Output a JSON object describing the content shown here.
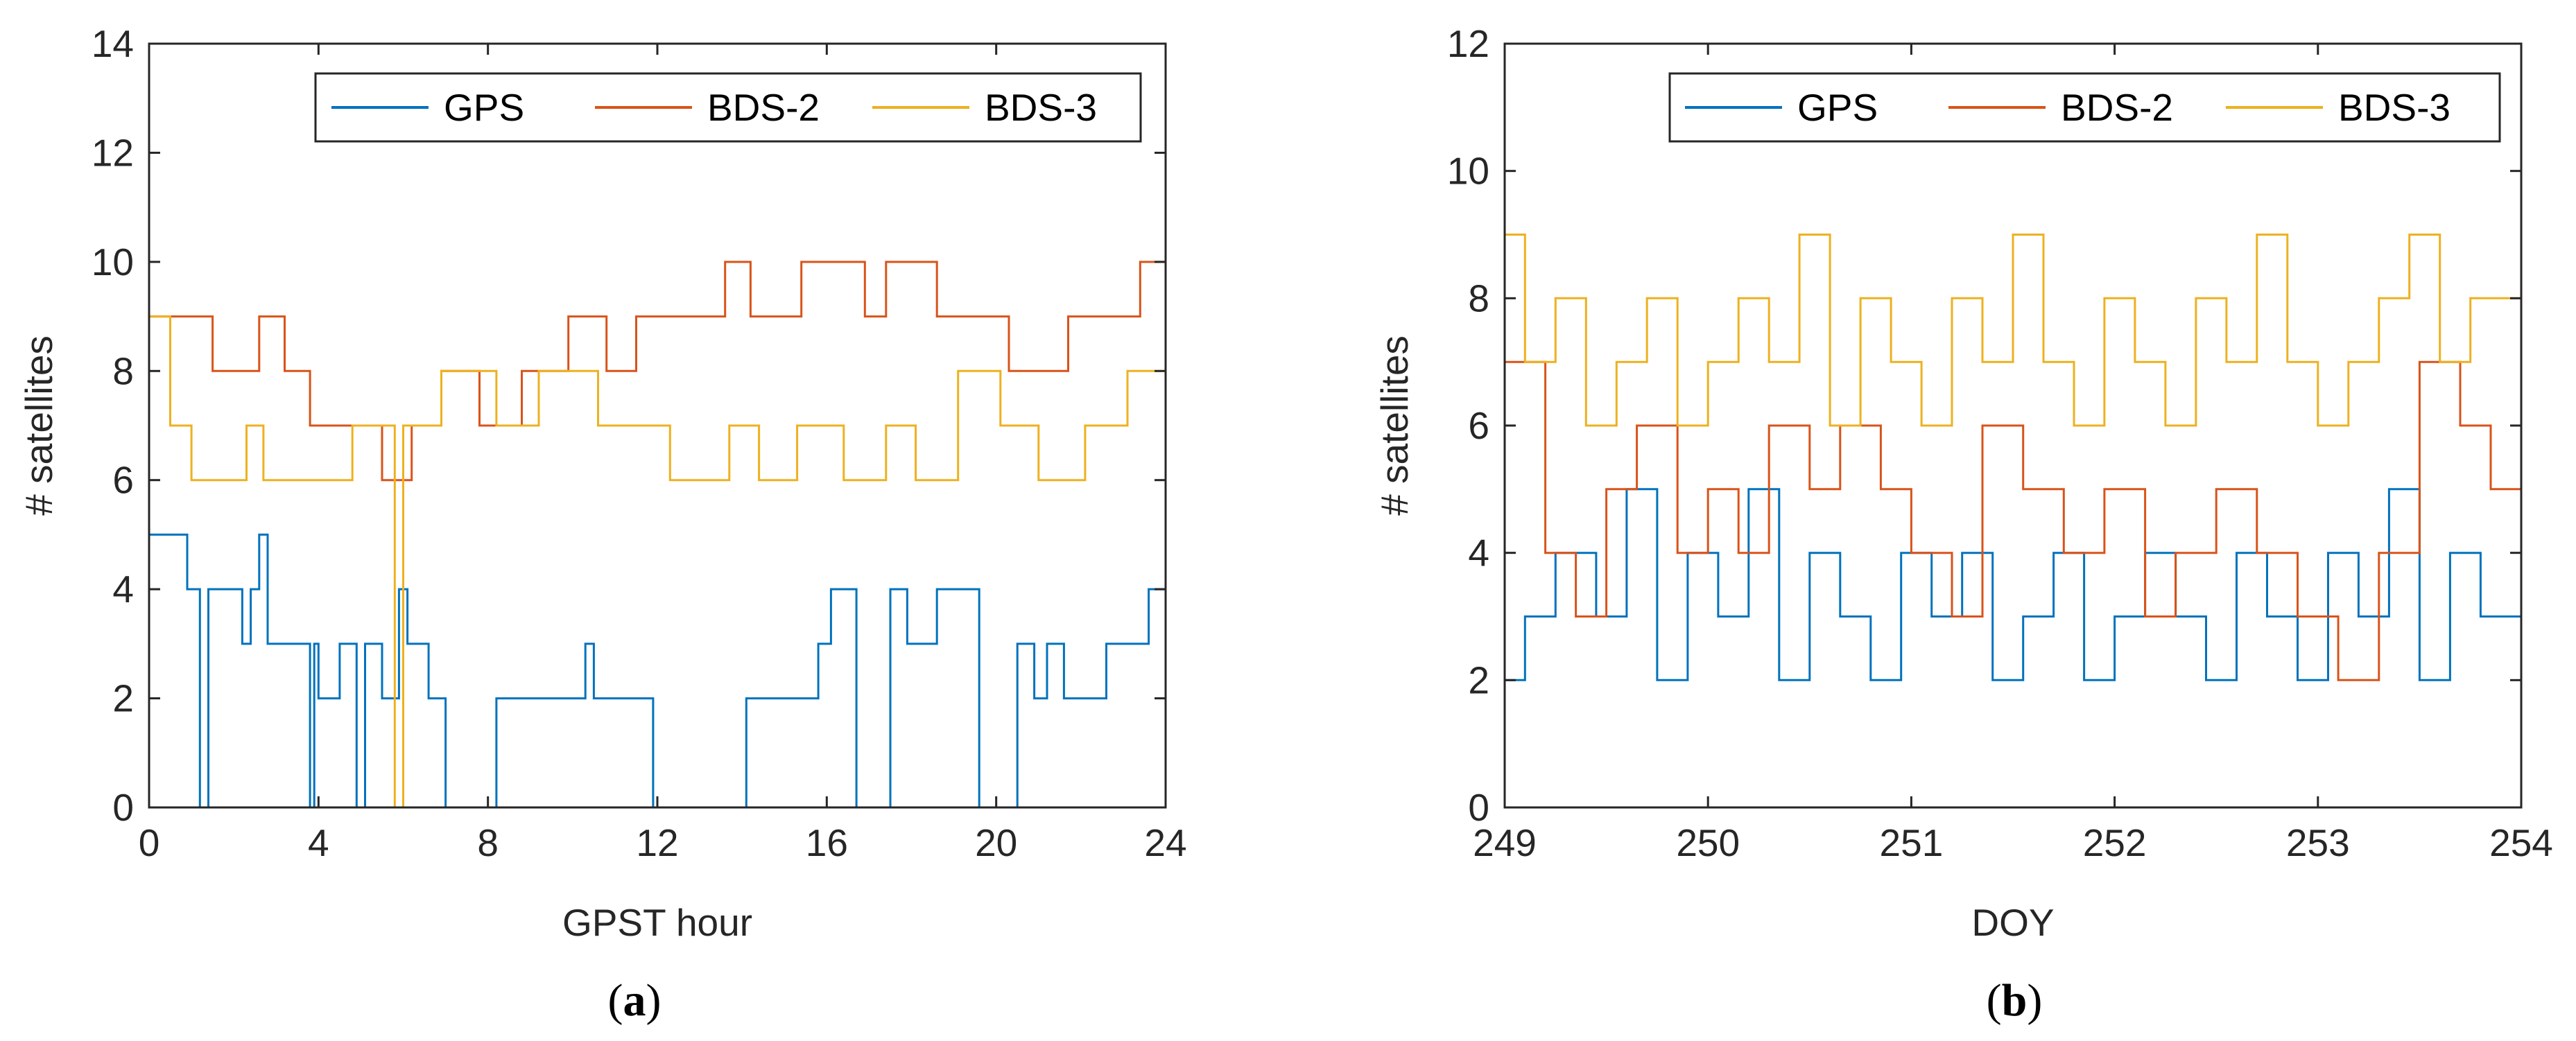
{
  "chart_data": [
    {
      "type": "line",
      "panel": "(a)",
      "caption_letter": "a",
      "xlabel": "GPST hour",
      "ylabel": "# satellites",
      "xlim": [
        0,
        24
      ],
      "ylim": [
        0,
        14
      ],
      "xticks": [
        0,
        4,
        8,
        12,
        16,
        20,
        24
      ],
      "yticks": [
        0,
        2,
        4,
        6,
        8,
        10,
        12,
        14
      ],
      "legend_position": "top-right",
      "series": [
        {
          "name": "GPS",
          "color": "#0072BD",
          "x": [
            0,
            0.9,
            0.9,
            1.2,
            1.2,
            1.4,
            1.4,
            2.2,
            2.2,
            2.4,
            2.4,
            2.6,
            2.6,
            2.8,
            2.8,
            3.3,
            3.3,
            3.8,
            3.8,
            3.9,
            3.9,
            4.0,
            4.0,
            4.5,
            4.5,
            4.9,
            4.9,
            5.1,
            5.1,
            5.5,
            5.5,
            5.9,
            5.9,
            6.1,
            6.1,
            6.6,
            6.6,
            7.0,
            7.0,
            8.2,
            8.2,
            9.3,
            9.3,
            10.3,
            10.3,
            10.5,
            10.5,
            10.9,
            10.9,
            11.9,
            11.9,
            12.0,
            12.0,
            14.1,
            14.1,
            15.8,
            15.8,
            16.1,
            16.1,
            16.7,
            16.7,
            17.5,
            17.5,
            17.9,
            17.9,
            18.6,
            18.6,
            19.6,
            19.6,
            20.5,
            20.5,
            20.9,
            20.9,
            21.2,
            21.2,
            21.6,
            21.6,
            22.6,
            22.6,
            23.6,
            23.6,
            24
          ],
          "y": [
            5,
            5,
            4,
            4,
            0,
            0,
            4,
            4,
            3,
            3,
            4,
            4,
            5,
            5,
            3,
            3,
            3,
            3,
            0,
            0,
            3,
            3,
            2,
            2,
            3,
            3,
            0,
            0,
            3,
            3,
            2,
            2,
            4,
            4,
            3,
            3,
            2,
            2,
            0,
            0,
            2,
            2,
            2,
            2,
            3,
            3,
            2,
            2,
            2,
            2,
            0,
            0,
            0,
            0,
            2,
            2,
            3,
            3,
            4,
            4,
            0,
            0,
            4,
            4,
            3,
            3,
            4,
            4,
            0,
            0,
            3,
            3,
            2,
            2,
            3,
            3,
            2,
            2,
            3,
            3,
            4,
            4
          ]
        },
        {
          "name": "BDS-2",
          "color": "#D95319",
          "x": [
            0,
            1.5,
            1.5,
            2.6,
            2.6,
            3.2,
            3.2,
            3.8,
            3.8,
            4.8,
            4.8,
            5.5,
            5.5,
            6.2,
            6.2,
            6.9,
            6.9,
            7.8,
            7.8,
            8.8,
            8.8,
            9.9,
            9.9,
            10.8,
            10.8,
            11.5,
            11.5,
            12.6,
            12.6,
            13.6,
            13.6,
            14.2,
            14.2,
            15.4,
            15.4,
            16.9,
            16.9,
            17.4,
            17.4,
            18.6,
            18.6,
            20.3,
            20.3,
            21.7,
            21.7,
            22.5,
            22.5,
            23.4,
            23.4,
            24
          ],
          "y": [
            9,
            9,
            8,
            8,
            9,
            9,
            8,
            8,
            7,
            7,
            7,
            7,
            6,
            6,
            7,
            7,
            8,
            8,
            7,
            7,
            8,
            8,
            9,
            9,
            8,
            8,
            9,
            9,
            9,
            9,
            10,
            10,
            9,
            9,
            10,
            10,
            9,
            9,
            10,
            10,
            9,
            9,
            8,
            8,
            9,
            9,
            9,
            9,
            10,
            10
          ]
        },
        {
          "name": "BDS-3",
          "color": "#EDB120",
          "x": [
            0,
            0.5,
            0.5,
            1.0,
            1.0,
            2.3,
            2.3,
            2.7,
            2.7,
            3.3,
            3.3,
            4.2,
            4.2,
            4.8,
            4.8,
            5.8,
            5.8,
            6.0,
            6.0,
            6.9,
            6.9,
            8.2,
            8.2,
            9.2,
            9.2,
            10.6,
            10.6,
            11.6,
            11.6,
            12.3,
            12.3,
            13.7,
            13.7,
            14.4,
            14.4,
            15.3,
            15.3,
            16.4,
            16.4,
            17.4,
            17.4,
            18.1,
            18.1,
            19.1,
            19.1,
            20.1,
            20.1,
            21.0,
            21.0,
            22.1,
            22.1,
            23.1,
            23.1,
            24
          ],
          "y": [
            9,
            9,
            7,
            7,
            6,
            6,
            7,
            7,
            6,
            6,
            6,
            6,
            6,
            6,
            7,
            7,
            0,
            0,
            7,
            7,
            8,
            8,
            7,
            7,
            8,
            8,
            7,
            7,
            7,
            7,
            6,
            6,
            7,
            7,
            6,
            6,
            7,
            7,
            6,
            6,
            7,
            7,
            6,
            6,
            8,
            8,
            7,
            7,
            6,
            6,
            7,
            7,
            8,
            8
          ]
        }
      ]
    },
    {
      "type": "line",
      "panel": "(b)",
      "caption_letter": "b",
      "xlabel": "DOY",
      "ylabel": "# satellites",
      "xlim": [
        249,
        254
      ],
      "ylim": [
        0,
        12
      ],
      "xticks": [
        249,
        250,
        251,
        252,
        253,
        254
      ],
      "yticks": [
        0,
        2,
        4,
        6,
        8,
        10,
        12
      ],
      "legend_position": "top-right",
      "series": [
        {
          "name": "GPS",
          "color": "#0072BD",
          "x": [
            249.0,
            249.1,
            249.1,
            249.25,
            249.25,
            249.45,
            249.45,
            249.6,
            249.6,
            249.75,
            249.75,
            249.9,
            249.9,
            250.05,
            250.05,
            250.2,
            250.2,
            250.35,
            250.35,
            250.5,
            250.5,
            250.65,
            250.65,
            250.8,
            250.8,
            250.95,
            250.95,
            251.1,
            251.1,
            251.25,
            251.25,
            251.4,
            251.4,
            251.55,
            251.55,
            251.7,
            251.7,
            251.85,
            251.85,
            252.0,
            252.0,
            252.15,
            252.15,
            252.3,
            252.3,
            252.45,
            252.45,
            252.6,
            252.6,
            252.75,
            252.75,
            252.9,
            252.9,
            253.05,
            253.05,
            253.2,
            253.2,
            253.35,
            253.35,
            253.5,
            253.5,
            253.65,
            253.65,
            253.8,
            253.8,
            254.0
          ],
          "y": [
            2,
            2,
            3,
            3,
            4,
            4,
            3,
            3,
            5,
            5,
            2,
            2,
            4,
            4,
            3,
            3,
            5,
            5,
            2,
            2,
            4,
            4,
            3,
            3,
            2,
            2,
            4,
            4,
            3,
            3,
            4,
            4,
            2,
            2,
            3,
            3,
            4,
            4,
            2,
            2,
            3,
            3,
            4,
            4,
            3,
            3,
            2,
            2,
            4,
            4,
            3,
            3,
            2,
            2,
            4,
            4,
            3,
            3,
            5,
            5,
            2,
            2,
            4,
            4,
            3,
            3
          ]
        },
        {
          "name": "BDS-2",
          "color": "#D95319",
          "x": [
            249.0,
            249.2,
            249.2,
            249.35,
            249.35,
            249.5,
            249.5,
            249.65,
            249.65,
            249.85,
            249.85,
            250.0,
            250.0,
            250.15,
            250.15,
            250.3,
            250.3,
            250.5,
            250.5,
            250.65,
            250.65,
            250.85,
            250.85,
            251.0,
            251.0,
            251.2,
            251.2,
            251.35,
            251.35,
            251.55,
            251.55,
            251.75,
            251.75,
            251.95,
            251.95,
            252.15,
            252.15,
            252.3,
            252.3,
            252.5,
            252.5,
            252.7,
            252.7,
            252.9,
            252.9,
            253.1,
            253.1,
            253.3,
            253.3,
            253.5,
            253.5,
            253.7,
            253.7,
            253.85,
            253.85,
            254.0
          ],
          "y": [
            7,
            7,
            4,
            4,
            3,
            3,
            5,
            5,
            6,
            6,
            4,
            4,
            5,
            5,
            4,
            4,
            6,
            6,
            5,
            5,
            6,
            6,
            5,
            5,
            4,
            4,
            3,
            3,
            6,
            6,
            5,
            5,
            4,
            4,
            5,
            5,
            3,
            3,
            4,
            4,
            5,
            5,
            4,
            4,
            3,
            3,
            2,
            2,
            4,
            4,
            7,
            7,
            6,
            6,
            5,
            5
          ]
        },
        {
          "name": "BDS-3",
          "color": "#EDB120",
          "x": [
            249.0,
            249.1,
            249.1,
            249.25,
            249.25,
            249.4,
            249.4,
            249.55,
            249.55,
            249.7,
            249.7,
            249.85,
            249.85,
            250.0,
            250.0,
            250.15,
            250.15,
            250.3,
            250.3,
            250.45,
            250.45,
            250.6,
            250.6,
            250.75,
            250.75,
            250.9,
            250.9,
            251.05,
            251.05,
            251.2,
            251.2,
            251.35,
            251.35,
            251.5,
            251.5,
            251.65,
            251.65,
            251.8,
            251.8,
            251.95,
            251.95,
            252.1,
            252.1,
            252.25,
            252.25,
            252.4,
            252.4,
            252.55,
            252.55,
            252.7,
            252.7,
            252.85,
            252.85,
            253.0,
            253.0,
            253.15,
            253.15,
            253.3,
            253.3,
            253.45,
            253.45,
            253.6,
            253.6,
            253.75,
            253.75,
            253.9,
            253.9,
            254.0
          ],
          "y": [
            9,
            9,
            7,
            7,
            8,
            8,
            6,
            6,
            7,
            7,
            8,
            8,
            6,
            6,
            7,
            7,
            8,
            8,
            7,
            7,
            9,
            9,
            6,
            6,
            8,
            8,
            7,
            7,
            6,
            6,
            8,
            8,
            7,
            7,
            9,
            9,
            7,
            7,
            6,
            6,
            8,
            8,
            7,
            7,
            6,
            6,
            8,
            8,
            7,
            7,
            9,
            9,
            7,
            7,
            6,
            6,
            7,
            7,
            8,
            8,
            9,
            9,
            7,
            7,
            8,
            8,
            8,
            8
          ]
        }
      ]
    }
  ]
}
